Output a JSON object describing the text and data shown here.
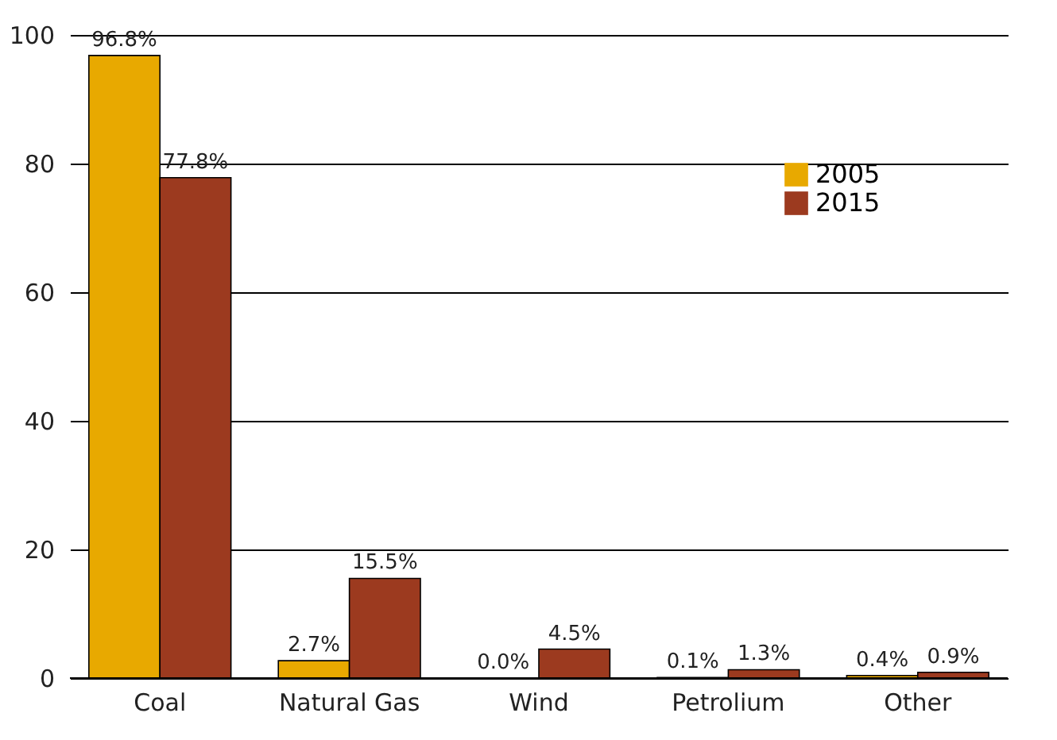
{
  "chart_data": {
    "type": "bar",
    "categories": [
      "Coal",
      "Natural Gas",
      "Wind",
      "Petrolium",
      "Other"
    ],
    "series": [
      {
        "name": "2005",
        "color": "#e8a900",
        "values": [
          96.8,
          2.7,
          0.0,
          0.1,
          0.4
        ],
        "value_labels": [
          "96.8%",
          "2.7%",
          "0.0%",
          "0.1%",
          "0.4%"
        ]
      },
      {
        "name": "2015",
        "color": "#9c3a1f",
        "values": [
          77.8,
          15.5,
          4.5,
          1.3,
          0.9
        ],
        "value_labels": [
          "77.8%",
          "15.5%",
          "4.5%",
          "1.3%",
          "0.9%"
        ]
      }
    ],
    "ylim": [
      0,
      100
    ],
    "yticks": [
      0,
      20,
      40,
      60,
      80,
      100
    ],
    "grid": "y",
    "legend": "top right"
  }
}
